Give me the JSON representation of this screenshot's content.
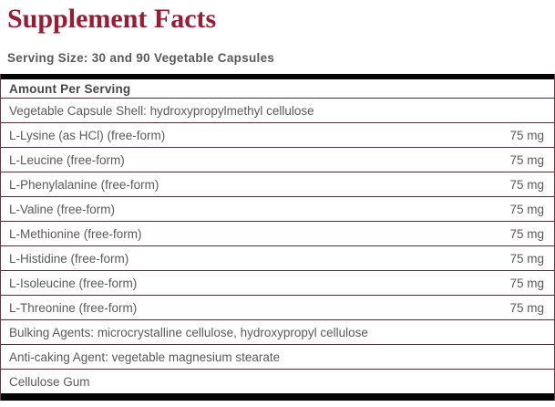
{
  "title": "Supplement Facts",
  "serving_size": "Serving Size: 30 and 90 Vegetable Capsules",
  "colors": {
    "title_maroon": "#9b1b33",
    "body_text_gray": "#595959",
    "header_text_gray": "#474747",
    "separator_maroon": "#5e2b35",
    "border_maroon": "#6e3340",
    "bar_black": "#050505",
    "background": "#ffffff"
  },
  "table": {
    "header": "Amount Per Serving",
    "rows": [
      {
        "label": "Vegetable Capsule Shell: hydroxypropylmethyl cellulose",
        "amount": ""
      },
      {
        "label": "L-Lysine (as HCl) (free-form)",
        "amount": "75 mg"
      },
      {
        "label": "L-Leucine (free-form)",
        "amount": "75 mg"
      },
      {
        "label": "L-Phenylalanine (free-form)",
        "amount": "75 mg"
      },
      {
        "label": "L-Valine (free-form)",
        "amount": "75 mg"
      },
      {
        "label": "L-Methionine (free-form)",
        "amount": "75 mg"
      },
      {
        "label": "L-Histidine (free-form)",
        "amount": "75 mg"
      },
      {
        "label": "L-Isoleucine (free-form)",
        "amount": "75 mg"
      },
      {
        "label": "L-Threonine (free-form)",
        "amount": "75 mg"
      },
      {
        "label": "Bulking Agents: microcrystalline cellulose, hydroxypropyl cellulose",
        "amount": ""
      },
      {
        "label": "Anti-caking Agent: vegetable magnesium stearate",
        "amount": ""
      },
      {
        "label": "Cellulose Gum",
        "amount": ""
      }
    ]
  }
}
